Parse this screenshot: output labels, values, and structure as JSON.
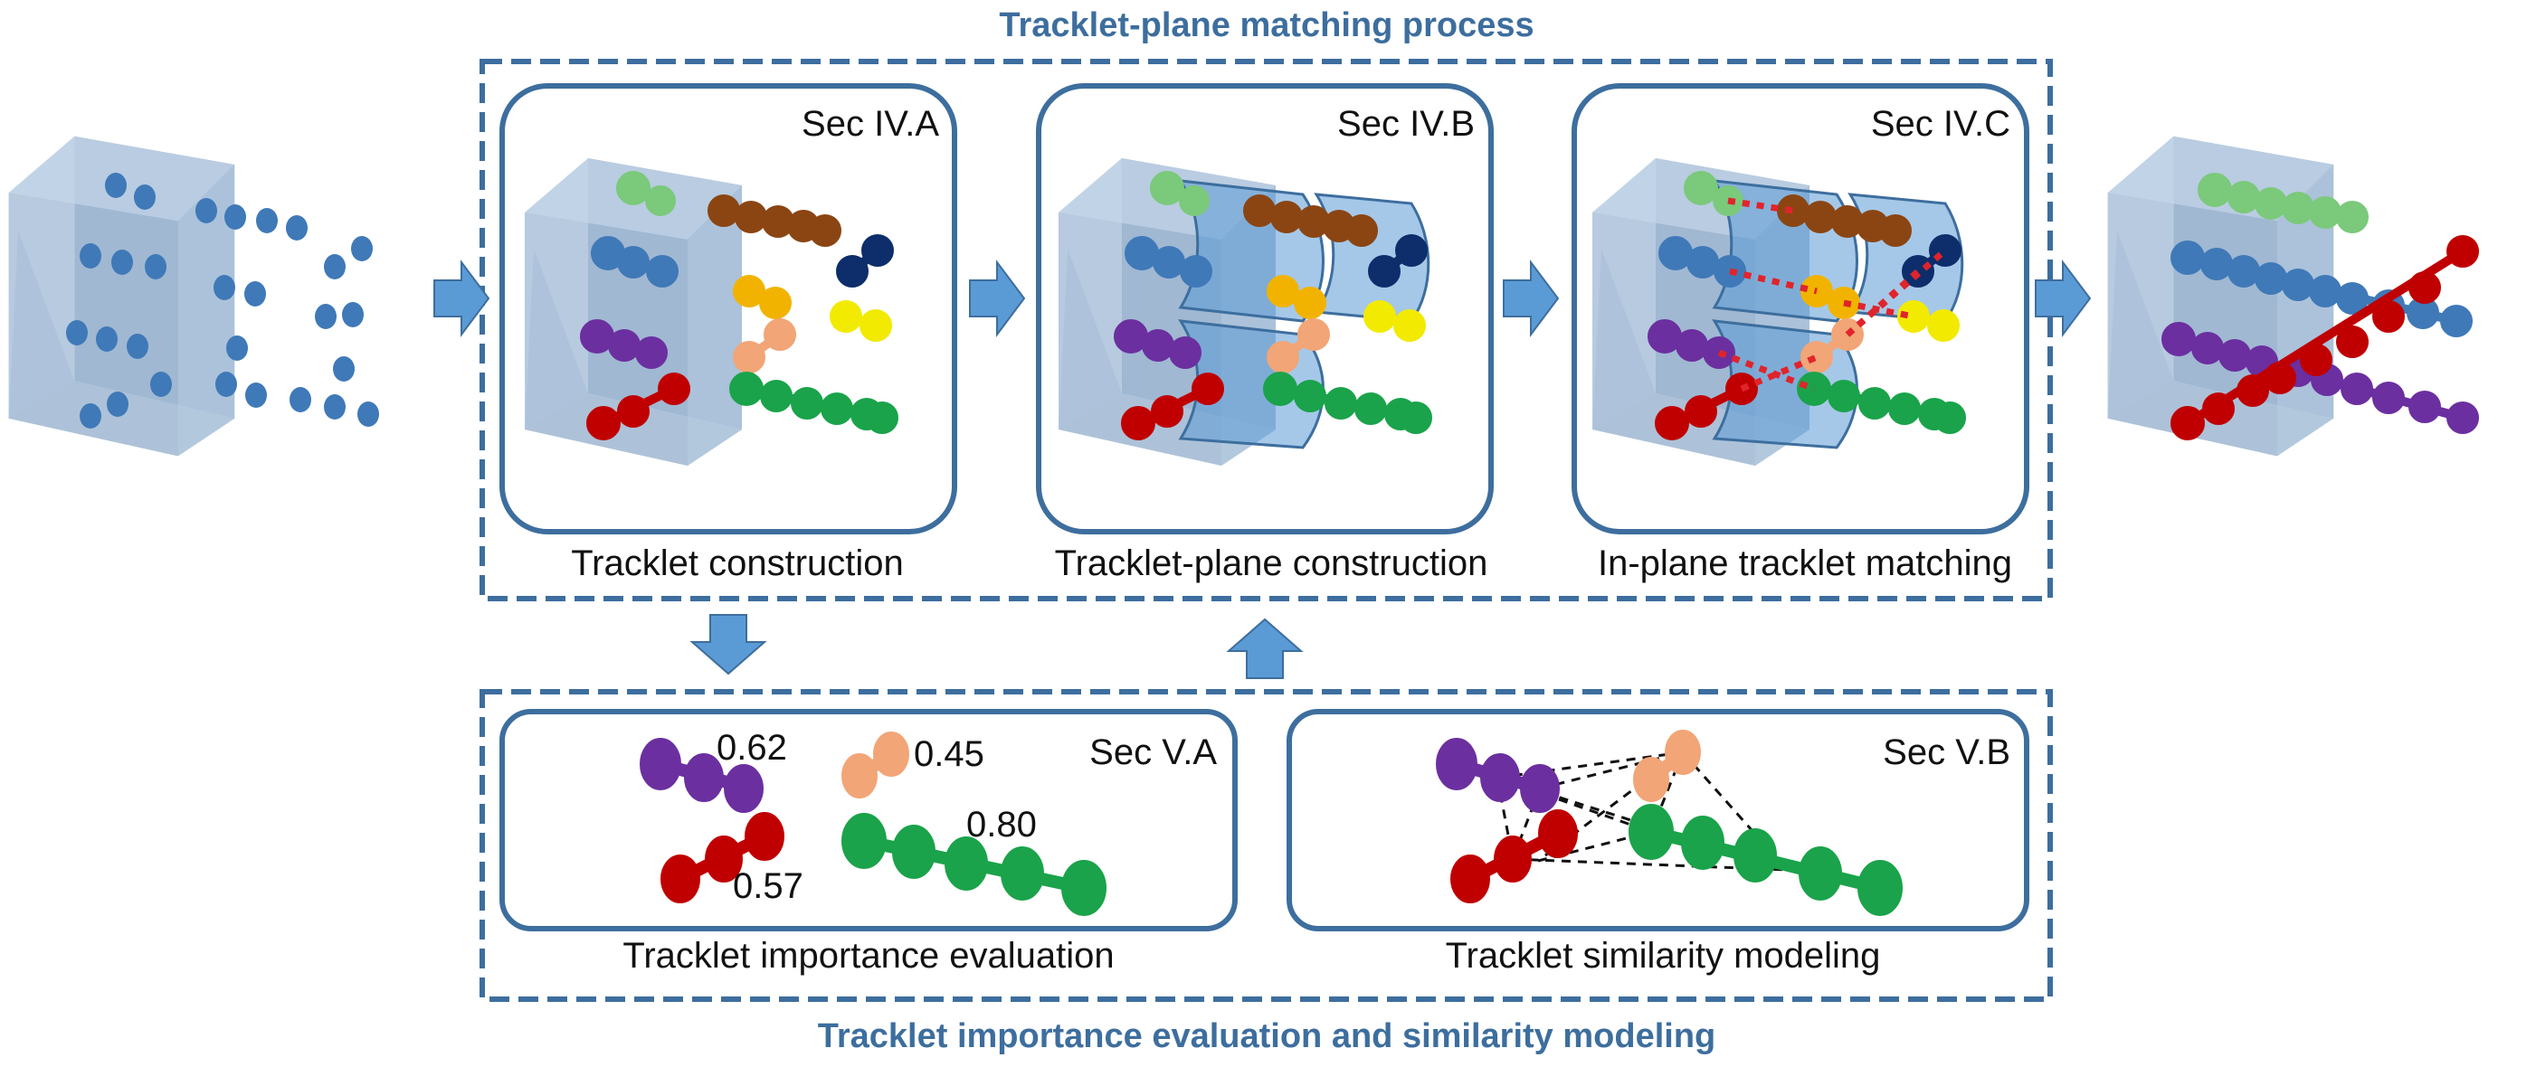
{
  "top_group": {
    "title": "Tracklet-plane matching process"
  },
  "bottom_group": {
    "title": "Tracklet importance evaluation and similarity modeling"
  },
  "panels": {
    "construction": {
      "sec": "Sec IV.A",
      "caption": "Tracklet construction"
    },
    "plane": {
      "sec": "Sec IV.B",
      "caption": "Tracklet-plane construction"
    },
    "matching": {
      "sec": "Sec IV.C",
      "caption": "In-plane tracklet matching"
    },
    "importance": {
      "sec": "Sec V.A",
      "caption": "Tracklet importance evaluation"
    },
    "similarity": {
      "sec": "Sec V.B",
      "caption": "Tracklet similarity modeling"
    }
  },
  "importance_scores": {
    "purple": "0.62",
    "peach": "0.45",
    "green": "0.80",
    "red": "0.57"
  },
  "colors": {
    "frame": "#3d6e9e",
    "arrow": "#5b9bd5",
    "cube_face": "#a9c1d9",
    "cube_back": "#7e9dbe",
    "detection": "#3f79b8",
    "match_line": "#e0242b"
  }
}
